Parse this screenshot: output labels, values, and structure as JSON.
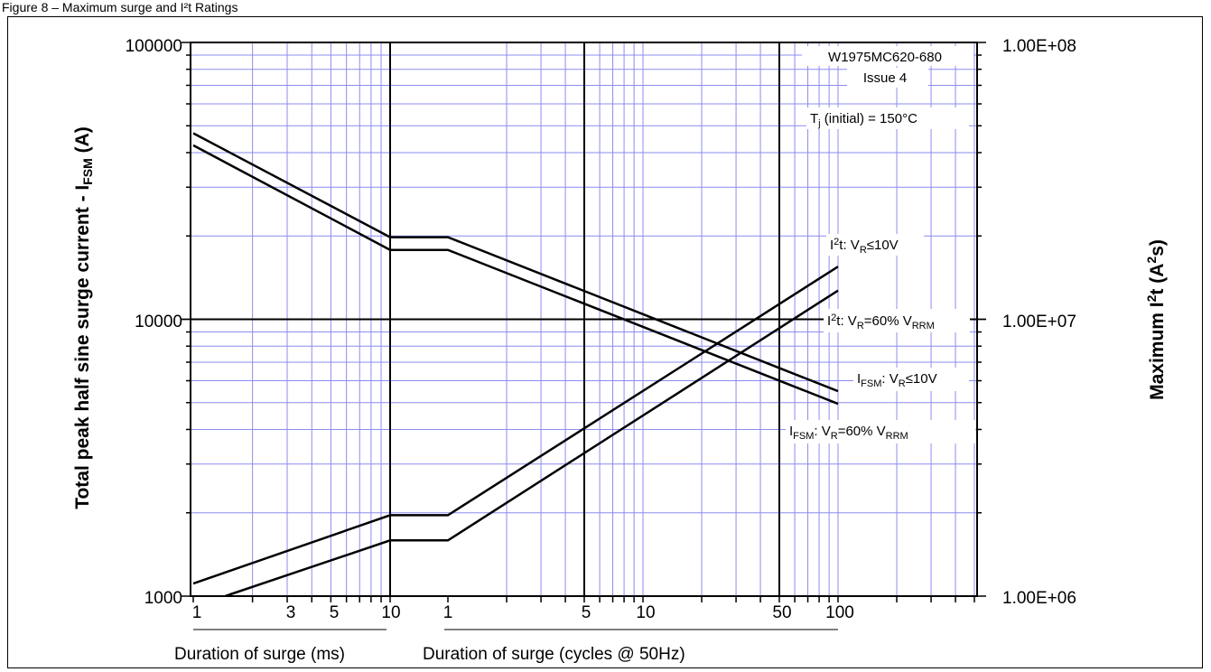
{
  "caption": "Figure 8 – Maximum surge and I²t Ratings",
  "chart_data": {
    "type": "line",
    "title": "",
    "ylabel_left": "Total peak half sine surge current - I",
    "ylabel_left_sub": "FSM",
    "ylabel_left_tail": " (A)",
    "ylabel_right": "Maximum I",
    "ylabel_right_sup": "2",
    "ylabel_right_tail": "t (A",
    "ylabel_right_sup2": "2",
    "ylabel_right_end": "s)",
    "y_left_scale": "log",
    "y_left_range": [
      1000,
      100000
    ],
    "y_left_ticks": [
      "100000",
      "10000",
      "1000"
    ],
    "y_right_scale": "log",
    "y_right_range": [
      1000000,
      100000000
    ],
    "y_right_ticks": [
      "1.00E+08",
      "1.00E+07",
      "1.00E+06"
    ],
    "grid": true,
    "grid_color": "#8c8cf0",
    "x_segments": [
      {
        "name": "ms",
        "label": "Duration of surge (ms)",
        "scale": "log",
        "range": [
          1,
          10
        ],
        "tick_labels": [
          "1",
          "3",
          "5",
          "10"
        ]
      },
      {
        "name": "cycles",
        "label": "Duration of surge (cycles @ 50Hz)",
        "scale": "log",
        "range": [
          1,
          100
        ],
        "tick_labels": [
          "1",
          "5",
          "10",
          "50",
          "100"
        ]
      }
    ],
    "annotations": {
      "part_number": "W1975MC620-680",
      "issue": "Issue 4",
      "tj_T": "T",
      "tj_sub": "j",
      "tj_rest": " (initial) = 150°C",
      "i2t_10v_a": "I",
      "i2t_10v_b": "2",
      "i2t_10v_c": "t: V",
      "i2t_10v_d": "R",
      "i2t_10v_e": "≤10V",
      "i2t_60_a": "I",
      "i2t_60_b": "2",
      "i2t_60_c": "t: V",
      "i2t_60_d": "R",
      "i2t_60_e": "=60% V",
      "i2t_60_f": "RRM",
      "ifsm_10v_a": "I",
      "ifsm_10v_b": "FSM",
      "ifsm_10v_c": ": V",
      "ifsm_10v_d": "R",
      "ifsm_10v_e": "≤10V",
      "ifsm_60_a": "I",
      "ifsm_60_b": "FSM",
      "ifsm_60_c": ": V",
      "ifsm_60_d": "R",
      "ifsm_60_e": "=60% V",
      "ifsm_60_f": "RRM"
    },
    "series": [
      {
        "key": "ifsm_10v",
        "axis": "left",
        "points": [
          {
            "seg": "ms",
            "x": 1,
            "y": 47000
          },
          {
            "seg": "ms",
            "x": 10,
            "y": 19800
          },
          {
            "seg": "cycles",
            "x": 1,
            "y": 19800
          },
          {
            "seg": "cycles",
            "x": 100,
            "y": 5500
          }
        ]
      },
      {
        "key": "ifsm_60",
        "axis": "left",
        "points": [
          {
            "seg": "ms",
            "x": 1,
            "y": 42500
          },
          {
            "seg": "ms",
            "x": 10,
            "y": 17800
          },
          {
            "seg": "cycles",
            "x": 1,
            "y": 17800
          },
          {
            "seg": "cycles",
            "x": 100,
            "y": 4950
          }
        ]
      },
      {
        "key": "i2t_10v",
        "axis": "right",
        "points": [
          {
            "seg": "ms",
            "x": 1,
            "y": 1110000
          },
          {
            "seg": "ms",
            "x": 10,
            "y": 1960000
          },
          {
            "seg": "cycles",
            "x": 1,
            "y": 1960000
          },
          {
            "seg": "cycles",
            "x": 100,
            "y": 15500000
          }
        ]
      },
      {
        "key": "i2t_60",
        "axis": "right",
        "points": [
          {
            "seg": "ms",
            "x": 1.45,
            "y": 1000000
          },
          {
            "seg": "ms",
            "x": 10,
            "y": 1590000
          },
          {
            "seg": "cycles",
            "x": 1,
            "y": 1590000
          },
          {
            "seg": "cycles",
            "x": 100,
            "y": 12700000
          }
        ]
      }
    ]
  }
}
